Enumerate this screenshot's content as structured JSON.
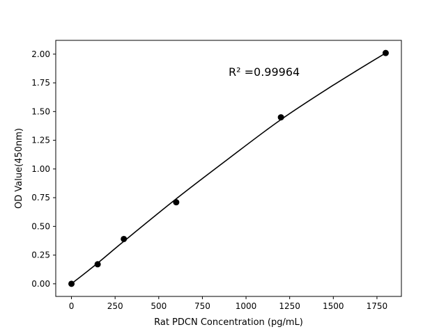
{
  "chart_data": {
    "type": "scatter",
    "title": "",
    "xlabel": "Rat PDCN Concentration (pg/mL)",
    "ylabel": "OD Value(450nm)",
    "xlim": [
      -90,
      1890
    ],
    "ylim": [
      -0.11,
      2.12
    ],
    "xticks": [
      0,
      250,
      500,
      750,
      1000,
      1250,
      1500,
      1750
    ],
    "yticks": [
      "0.00",
      "0.25",
      "0.50",
      "0.75",
      "1.00",
      "1.25",
      "1.50",
      "1.75",
      "2.00"
    ],
    "grid": false,
    "points": {
      "x": [
        0,
        150,
        300,
        600,
        1200,
        1800
      ],
      "y": [
        0.0,
        0.17,
        0.39,
        0.71,
        1.45,
        2.01
      ],
      "color": "#000000"
    },
    "fit_curve": {
      "x": [
        0,
        150,
        300,
        600,
        900,
        1200,
        1500,
        1800
      ],
      "y": [
        0.0,
        0.18,
        0.37,
        0.74,
        1.09,
        1.43,
        1.73,
        2.01
      ],
      "color": "#000000"
    },
    "annotation": "R² =0.99964"
  }
}
